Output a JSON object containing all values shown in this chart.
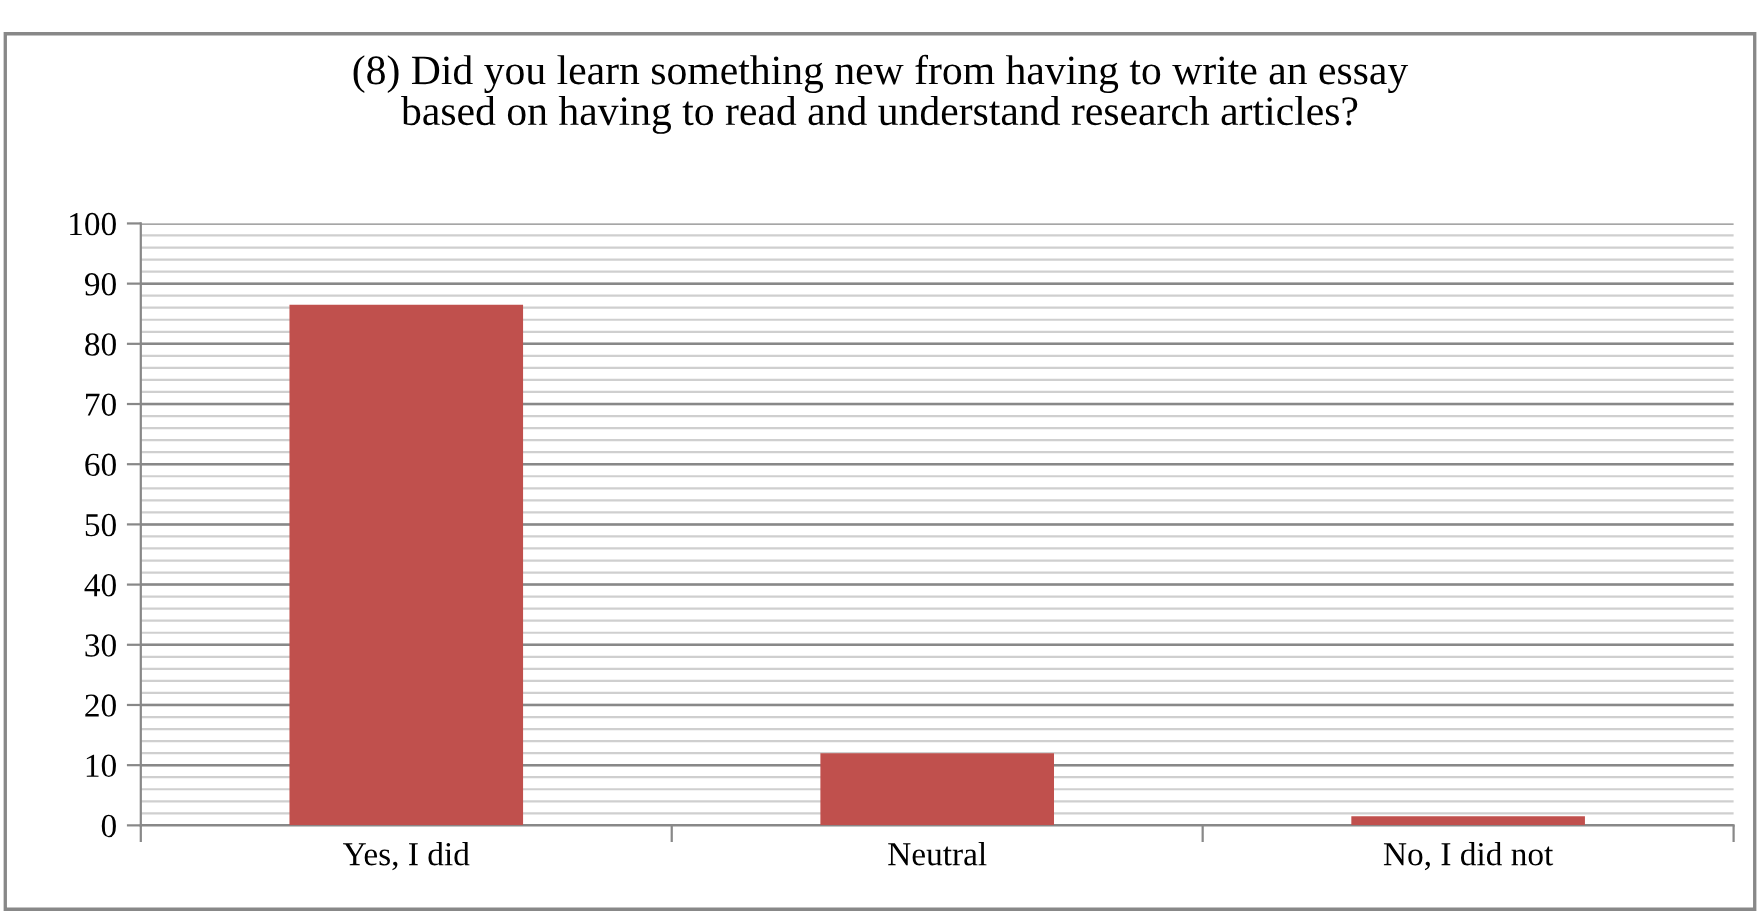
{
  "chart_data": {
    "type": "bar",
    "title": "(8) Did you learn something new from having to write an essay\nbased on having to read and understand research articles?",
    "categories": [
      "Yes, I did",
      "Neutral",
      "No, I did not"
    ],
    "values": [
      86.5,
      12,
      1.5
    ],
    "color": "#c0504d",
    "ylim": [
      0,
      100
    ],
    "yticks": [
      0,
      10,
      20,
      30,
      40,
      50,
      60,
      70,
      80,
      90,
      100
    ],
    "grid": "y",
    "legend": false
  }
}
